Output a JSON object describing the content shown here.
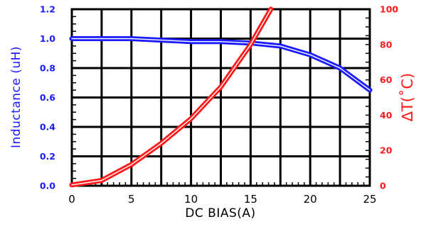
{
  "chart_data": {
    "type": "line",
    "xlabel": "DC BIAS(A)",
    "ylabel_left": "Inductance (uH)",
    "ylabel_right": "∆T(˚C)",
    "xlim": [
      0,
      25
    ],
    "ylim_left": [
      0,
      1.2
    ],
    "ylim_right": [
      0,
      100
    ],
    "x_ticks": [
      "0",
      "5",
      "10",
      "15",
      "20",
      "25"
    ],
    "y_ticks_left": [
      "0.0",
      "0.2",
      "0.4",
      "0.6",
      "0.8",
      "1.0",
      "1.2"
    ],
    "y_ticks_right": [
      "0",
      "20",
      "40",
      "60",
      "80",
      "100"
    ],
    "grid": true,
    "series": [
      {
        "axis": "left",
        "color": "#1a1aff",
        "x": [
          0,
          2.5,
          5,
          7.5,
          10,
          12.5,
          15,
          17.5,
          20,
          22.5,
          25
        ],
        "values": [
          1.0,
          1.0,
          1.0,
          0.99,
          0.98,
          0.98,
          0.97,
          0.95,
          0.89,
          0.8,
          0.65
        ]
      },
      {
        "axis": "right",
        "color": "#ff1a1a",
        "x": [
          0,
          2.5,
          5,
          7.5,
          10,
          12.5,
          15,
          16.7
        ],
        "values": [
          0.5,
          3,
          12,
          24,
          38,
          56,
          80,
          100
        ]
      }
    ]
  }
}
